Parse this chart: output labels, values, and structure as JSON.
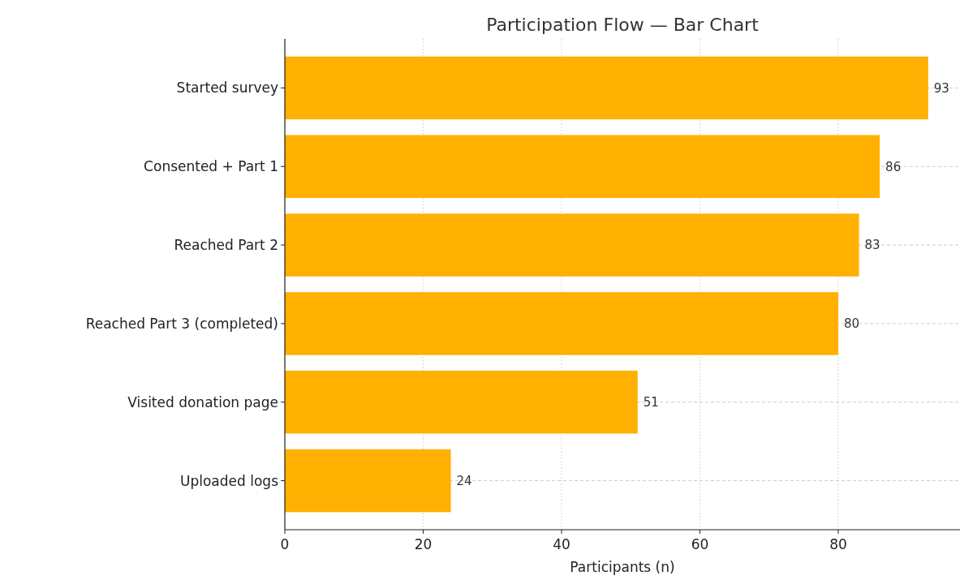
{
  "chart_data": {
    "type": "bar",
    "orientation": "horizontal",
    "title": "Participation Flow — Bar Chart",
    "xlabel": "Participants (n)",
    "categories": [
      "Started survey",
      "Consented + Part 1",
      "Reached Part 2",
      "Reached Part 3 (completed)",
      "Visited donation page",
      "Uploaded logs"
    ],
    "values": [
      93,
      86,
      83,
      80,
      51,
      24
    ],
    "color": "#ffb000",
    "xlim": [
      0,
      97.6
    ],
    "xticks": [
      0,
      20,
      40,
      60,
      80
    ],
    "grid": true,
    "data_labels": true
  }
}
